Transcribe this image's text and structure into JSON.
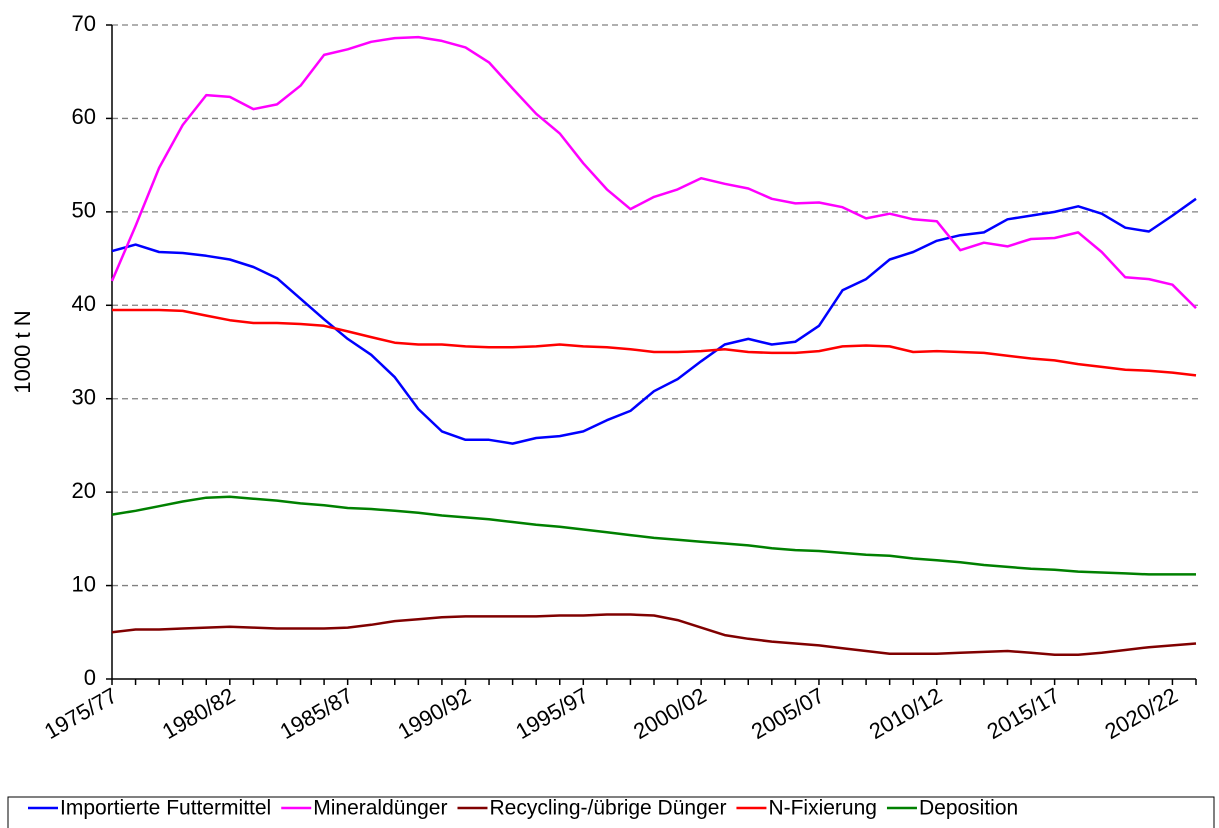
{
  "chart_data": {
    "type": "line",
    "y_label": "1000 t N",
    "categories": [
      "1975/77",
      null,
      null,
      null,
      null,
      "1980/82",
      null,
      null,
      null,
      null,
      "1985/87",
      null,
      null,
      null,
      null,
      "1990/92",
      null,
      null,
      null,
      null,
      "1995/97",
      null,
      null,
      null,
      null,
      "2000/02",
      null,
      null,
      null,
      null,
      "2005/07",
      null,
      null,
      null,
      null,
      "2010/12",
      null,
      null,
      null,
      null,
      "2015/17",
      null,
      null,
      null,
      null,
      "2020/22",
      null
    ],
    "ylim": [
      0,
      70
    ],
    "yticks": [
      0,
      10,
      20,
      30,
      40,
      50,
      60,
      70
    ],
    "grid": true,
    "series": [
      {
        "name": "Importierte Futtermittel",
        "color": "#0000ff",
        "values": [
          45.8,
          46.5,
          45.7,
          45.6,
          45.3,
          44.9,
          44.1,
          42.9,
          40.7,
          38.5,
          36.4,
          34.7,
          32.3,
          28.9,
          26.5,
          25.6,
          25.6,
          25.2,
          25.8,
          26.0,
          26.5,
          27.7,
          28.7,
          30.8,
          32.1,
          34.0,
          35.8,
          36.4,
          35.8,
          36.1,
          37.8,
          41.6,
          42.8,
          44.9,
          45.7,
          46.9,
          47.5,
          47.8,
          49.2,
          49.6,
          50.0,
          50.6,
          49.8,
          48.3,
          47.9,
          49.6,
          51.4
        ]
      },
      {
        "name": "Mineraldünger",
        "color": "#ff00ff",
        "values": [
          42.6,
          48.5,
          54.7,
          59.3,
          62.5,
          62.3,
          61.0,
          61.5,
          63.5,
          66.8,
          67.4,
          68.2,
          68.6,
          68.7,
          68.3,
          67.6,
          66.0,
          63.2,
          60.5,
          58.4,
          55.2,
          52.4,
          50.3,
          51.6,
          52.4,
          53.6,
          53.0,
          52.5,
          51.4,
          50.9,
          51.0,
          50.5,
          49.3,
          49.8,
          49.2,
          49.0,
          45.9,
          46.7,
          46.3,
          47.1,
          47.2,
          47.8,
          45.7,
          43.0,
          42.8,
          42.2,
          39.7
        ]
      },
      {
        "name": "Recycling-/übrige Dünger",
        "color": "#800000",
        "values": [
          5.0,
          5.3,
          5.3,
          5.4,
          5.5,
          5.6,
          5.5,
          5.4,
          5.4,
          5.4,
          5.5,
          5.8,
          6.2,
          6.4,
          6.6,
          6.7,
          6.7,
          6.7,
          6.7,
          6.8,
          6.8,
          6.9,
          6.9,
          6.8,
          6.3,
          5.5,
          4.7,
          4.3,
          4.0,
          3.8,
          3.6,
          3.3,
          3.0,
          2.7,
          2.7,
          2.7,
          2.8,
          2.9,
          3.0,
          2.8,
          2.6,
          2.6,
          2.8,
          3.1,
          3.4,
          3.6,
          3.8
        ]
      },
      {
        "name": "N-Fixierung",
        "color": "#ff0000",
        "values": [
          39.5,
          39.5,
          39.5,
          39.4,
          38.9,
          38.4,
          38.1,
          38.1,
          38.0,
          37.8,
          37.2,
          36.6,
          36.0,
          35.8,
          35.8,
          35.6,
          35.5,
          35.5,
          35.6,
          35.8,
          35.6,
          35.5,
          35.3,
          35.0,
          35.0,
          35.1,
          35.3,
          35.0,
          34.9,
          34.9,
          35.1,
          35.6,
          35.7,
          35.6,
          35.0,
          35.1,
          35.0,
          34.9,
          34.6,
          34.3,
          34.1,
          33.7,
          33.4,
          33.1,
          33.0,
          32.8,
          32.5
        ]
      },
      {
        "name": "Deposition",
        "color": "#008000",
        "values": [
          17.6,
          18.0,
          18.5,
          19.0,
          19.4,
          19.5,
          19.3,
          19.1,
          18.8,
          18.6,
          18.3,
          18.2,
          18.0,
          17.8,
          17.5,
          17.3,
          17.1,
          16.8,
          16.5,
          16.3,
          16.0,
          15.7,
          15.4,
          15.1,
          14.9,
          14.7,
          14.5,
          14.3,
          14.0,
          13.8,
          13.7,
          13.5,
          13.3,
          13.2,
          12.9,
          12.7,
          12.5,
          12.2,
          12.0,
          11.8,
          11.7,
          11.5,
          11.4,
          11.3,
          11.2,
          11.2,
          11.2
        ]
      }
    ]
  }
}
